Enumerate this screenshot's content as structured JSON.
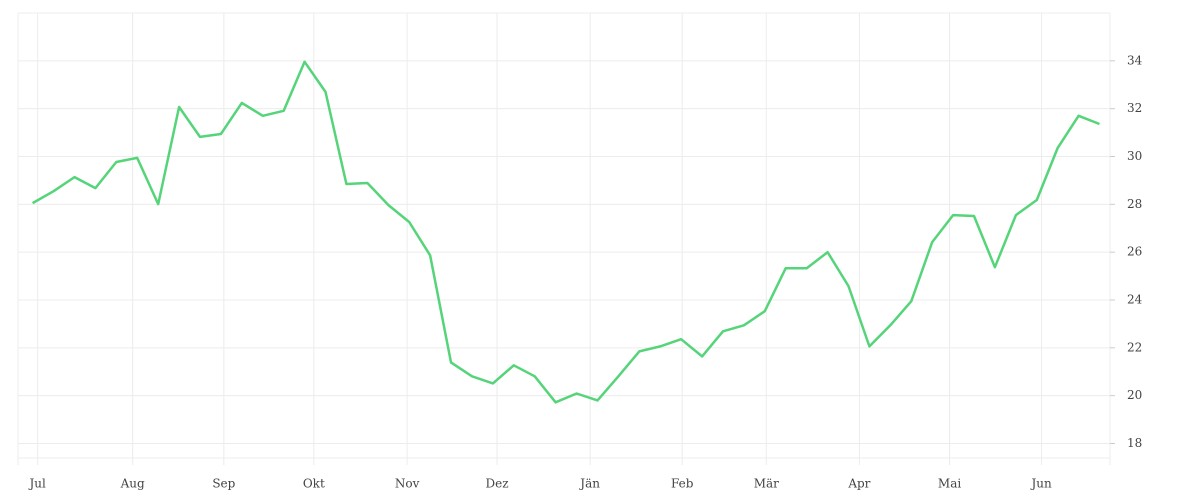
{
  "chart_data": {
    "type": "line",
    "x": [
      0,
      1,
      2,
      3,
      4,
      5,
      6,
      7,
      8,
      9,
      10,
      11,
      12,
      13,
      14,
      15,
      16,
      17,
      18,
      19,
      20,
      21,
      22,
      23,
      24,
      25,
      26,
      27,
      28,
      29,
      30,
      31,
      32,
      33,
      34,
      35,
      36,
      37,
      38,
      39,
      40,
      41,
      42,
      43,
      44,
      45,
      46,
      47,
      48,
      49,
      50,
      51
    ],
    "series": [
      {
        "color": "#55d47a",
        "values": [
          28.05,
          28.55,
          29.14,
          28.68,
          29.77,
          29.94,
          28.01,
          32.07,
          30.82,
          30.94,
          32.24,
          31.7,
          31.91,
          33.96,
          32.7,
          28.85,
          28.89,
          27.97,
          27.26,
          25.87,
          21.39,
          20.81,
          20.51,
          21.27,
          20.81,
          19.72,
          20.09,
          19.8,
          20.81,
          21.85,
          22.06,
          22.36,
          21.64,
          22.69,
          22.94,
          23.53,
          25.33,
          25.33,
          26.0,
          24.58,
          22.06,
          22.94,
          23.95,
          26.42,
          27.55,
          27.51,
          25.37,
          27.55,
          28.18,
          30.36,
          31.7,
          31.36
        ]
      }
    ],
    "xlim": [
      -0.7,
      51.5
    ],
    "xticks": [
      {
        "value": 0.24,
        "label": "Jul"
      },
      {
        "value": 4.78,
        "label": "Aug"
      },
      {
        "value": 9.14,
        "label": "Sep"
      },
      {
        "value": 13.44,
        "label": "Okt"
      },
      {
        "value": 17.9,
        "label": "Nov"
      },
      {
        "value": 22.2,
        "label": "Dez"
      },
      {
        "value": 26.65,
        "label": "Jän"
      },
      {
        "value": 31.05,
        "label": "Feb"
      },
      {
        "value": 35.07,
        "label": "Mär"
      },
      {
        "value": 39.52,
        "label": "Apr"
      },
      {
        "value": 43.83,
        "label": "Mai"
      },
      {
        "value": 48.23,
        "label": "Jun"
      }
    ],
    "ylim": [
      17.1,
      36
    ],
    "yticks": [
      18,
      20,
      22,
      24,
      26,
      28,
      30,
      32,
      34
    ],
    "grid": true
  }
}
